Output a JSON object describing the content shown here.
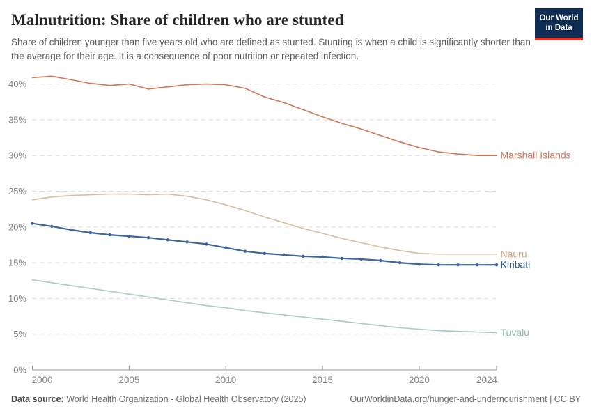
{
  "header": {
    "logo": {
      "line1": "Our World",
      "line2": "in Data"
    }
  },
  "footer": {
    "source_label": "Data source:",
    "source_text": " World Health Organization - Global Health Observatory (2025)",
    "credit": "OurWorldinData.org/hunger-and-undernourishment | CC BY"
  },
  "chart_data": {
    "type": "line",
    "title": "Malnutrition: Share of children who are stunted",
    "subtitle": "Share of children younger than five years old who are defined as stunted. Stunting is when a child is significantly shorter than the average for their age. It is a consequence of poor nutrition or repeated infection.",
    "xlabel": "",
    "ylabel": "",
    "x": [
      2000,
      2001,
      2002,
      2003,
      2004,
      2005,
      2006,
      2007,
      2008,
      2009,
      2010,
      2011,
      2012,
      2013,
      2014,
      2015,
      2016,
      2017,
      2018,
      2019,
      2020,
      2021,
      2022,
      2023,
      2024
    ],
    "series": [
      {
        "name": "Marshall Islands",
        "color": "#d1745a",
        "label_color": "#d1745a",
        "markers": false,
        "values": [
          40.9,
          41.1,
          40.6,
          40.1,
          39.8,
          40.0,
          39.3,
          39.6,
          39.9,
          40.0,
          39.9,
          39.4,
          38.2,
          37.4,
          36.4,
          35.4,
          34.5,
          33.7,
          32.8,
          31.9,
          31.1,
          30.5,
          30.2,
          30.0,
          30.0
        ]
      },
      {
        "name": "Nauru",
        "color": "#d9bc9c",
        "label_color": "#cfa57f",
        "markers": false,
        "values": [
          23.8,
          24.2,
          24.4,
          24.5,
          24.6,
          24.6,
          24.5,
          24.6,
          24.3,
          23.8,
          23.1,
          22.3,
          21.4,
          20.6,
          19.8,
          19.1,
          18.4,
          17.8,
          17.2,
          16.7,
          16.3,
          16.2,
          16.2,
          16.2,
          16.2
        ]
      },
      {
        "name": "Kiribati",
        "color": "#3d649c",
        "label_color": "#2e5585",
        "markers": true,
        "values": [
          20.5,
          20.1,
          19.6,
          19.2,
          18.9,
          18.7,
          18.5,
          18.2,
          17.9,
          17.6,
          17.1,
          16.6,
          16.3,
          16.1,
          15.9,
          15.8,
          15.6,
          15.5,
          15.3,
          15.0,
          14.8,
          14.7,
          14.7,
          14.7,
          14.7
        ]
      },
      {
        "name": "Tuvalu",
        "color": "#a8cec0",
        "label_color": "#8fbfab",
        "markers": false,
        "values": [
          12.6,
          12.2,
          11.8,
          11.4,
          11.0,
          10.6,
          10.2,
          9.8,
          9.4,
          9.0,
          8.7,
          8.3,
          8.0,
          7.7,
          7.4,
          7.1,
          6.8,
          6.5,
          6.2,
          5.9,
          5.7,
          5.5,
          5.4,
          5.3,
          5.2
        ]
      }
    ],
    "ylim": [
      0,
      41
    ],
    "yticks": [
      0,
      5,
      10,
      15,
      20,
      25,
      30,
      35,
      40
    ],
    "ytick_suffix": "%",
    "xticks": [
      2000,
      2005,
      2010,
      2015,
      2020,
      2024
    ],
    "grid": "horizontal-dashed",
    "legend_position": "end-of-line-labels"
  }
}
